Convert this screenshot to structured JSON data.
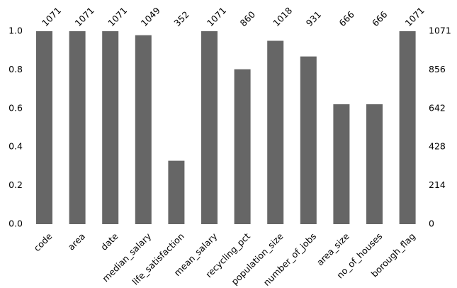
{
  "chart_data": {
    "type": "bar",
    "title": "",
    "xlabel": "",
    "ylabel": "",
    "ylim": [
      0,
      1
    ],
    "grid": false,
    "bar_color": "#666666",
    "categories": [
      "code",
      "area",
      "date",
      "median_salary",
      "life_satisfaction",
      "mean_salary",
      "recycling_pct",
      "population_size",
      "number_of_jobs",
      "area_size",
      "no_of_houses",
      "borough_flag"
    ],
    "counts": [
      1071,
      1071,
      1071,
      1049,
      352,
      1071,
      860,
      1018,
      931,
      666,
      666,
      1071
    ],
    "values": [
      1.0,
      1.0,
      1.0,
      0.9795,
      0.3287,
      1.0,
      0.803,
      0.9505,
      0.8693,
      0.6218,
      0.6218,
      1.0
    ],
    "total": 1071,
    "left_ticks": [
      "0.0",
      "0.2",
      "0.4",
      "0.6",
      "0.8",
      "1.0"
    ],
    "right_ticks": [
      "0",
      "214",
      "428",
      "642",
      "856",
      "1071"
    ]
  }
}
